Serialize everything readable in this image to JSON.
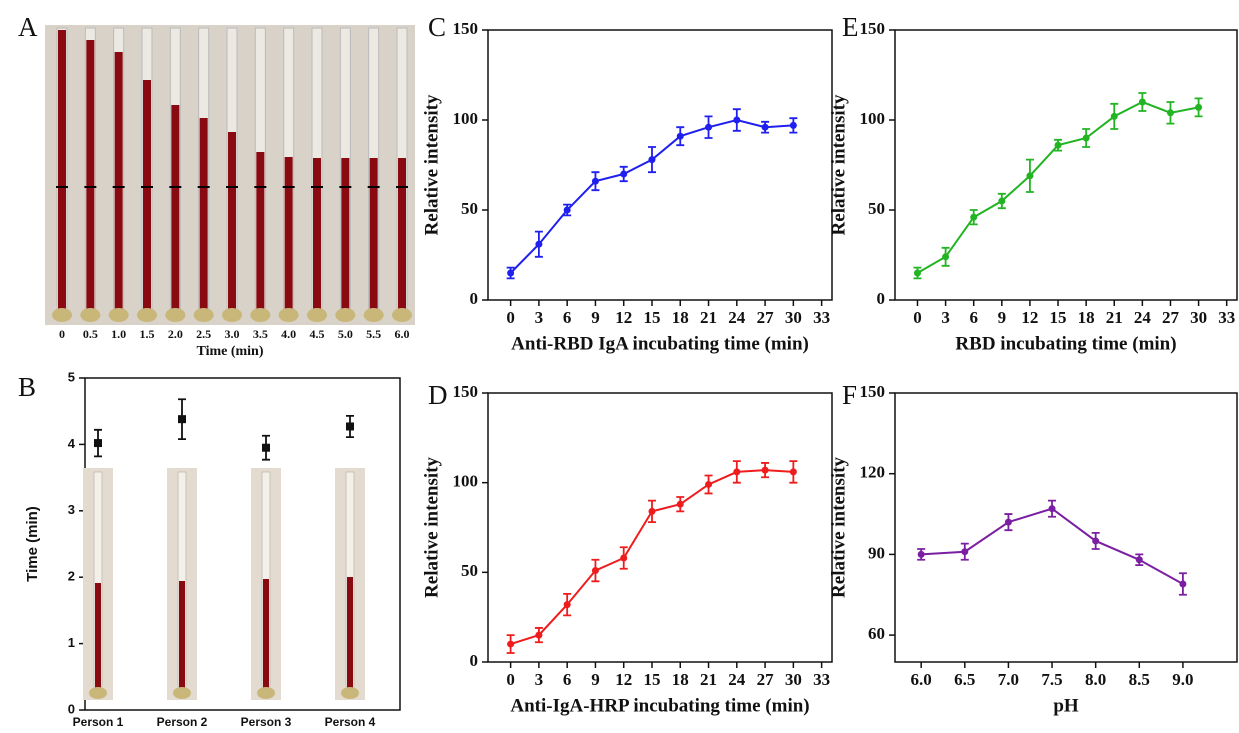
{
  "chart_data": [
    {
      "type": "image",
      "panel": "A",
      "categories": [
        "0",
        "0.5",
        "1.0",
        "1.5",
        "2.0",
        "2.5",
        "3.0",
        "3.5",
        "4.0",
        "4.5",
        "5.0",
        "5.5",
        "6.0"
      ],
      "xlabel": "Time (min)"
    },
    {
      "type": "scatter",
      "panel": "B",
      "categories": [
        "Person 1",
        "Person 2",
        "Person 3",
        "Person 4"
      ],
      "values": [
        4.02,
        4.38,
        3.95,
        4.27
      ],
      "errors": [
        0.2,
        0.3,
        0.18,
        0.16
      ],
      "color": "#111111",
      "ylabel": "Time (min)",
      "ylim": [
        0,
        5
      ],
      "yticks": [
        0,
        1,
        2,
        3,
        4,
        5
      ]
    },
    {
      "type": "line",
      "panel": "C",
      "x": [
        0,
        3,
        6,
        9,
        12,
        15,
        18,
        21,
        24,
        27,
        30
      ],
      "series": [
        {
          "color": "#1f1fef",
          "values": [
            15,
            31,
            50,
            66,
            70,
            78,
            91,
            96,
            100,
            96,
            97
          ],
          "errors": [
            3,
            7,
            3,
            5,
            4,
            7,
            5,
            6,
            6,
            3,
            4
          ]
        }
      ],
      "xlabel": "Anti-RBD IgA incubating time (min)",
      "ylabel": "Relative intensity",
      "xlim": [
        -2.4,
        34.1
      ],
      "xticks": [
        0,
        3,
        6,
        9,
        12,
        15,
        18,
        21,
        24,
        27,
        30,
        33
      ],
      "ylim": [
        0,
        150
      ],
      "yticks": [
        0,
        50,
        100,
        150
      ]
    },
    {
      "type": "line",
      "panel": "D",
      "x": [
        0,
        3,
        6,
        9,
        12,
        15,
        18,
        21,
        24,
        27,
        30
      ],
      "series": [
        {
          "color": "#ee1c1c",
          "values": [
            10,
            15,
            32,
            51,
            58,
            84,
            88,
            99,
            106,
            107,
            106
          ],
          "errors": [
            5,
            4,
            6,
            6,
            6,
            6,
            4,
            5,
            6,
            4,
            6
          ]
        }
      ],
      "xlabel": "Anti-IgA-HRP incubating time (min)",
      "ylabel": "Relative intensity",
      "xlim": [
        -2.4,
        34.1
      ],
      "xticks": [
        0,
        3,
        6,
        9,
        12,
        15,
        18,
        21,
        24,
        27,
        30,
        33
      ],
      "ylim": [
        0,
        150
      ],
      "yticks": [
        0,
        50,
        100,
        150
      ]
    },
    {
      "type": "line",
      "panel": "E",
      "x": [
        0,
        3,
        6,
        9,
        12,
        15,
        18,
        21,
        24,
        27,
        30
      ],
      "series": [
        {
          "color": "#22b422",
          "values": [
            15,
            24,
            46,
            55,
            69,
            86,
            90,
            102,
            110,
            104,
            107
          ],
          "errors": [
            3,
            5,
            4,
            4,
            9,
            3,
            5,
            7,
            5,
            6,
            5
          ]
        }
      ],
      "xlabel": "RBD incubating time (min)",
      "ylabel": "Relative intensity",
      "xlim": [
        -2.4,
        34.1
      ],
      "xticks": [
        0,
        3,
        6,
        9,
        12,
        15,
        18,
        21,
        24,
        27,
        30,
        33
      ],
      "ylim": [
        0,
        150
      ],
      "yticks": [
        0,
        50,
        100,
        150
      ]
    },
    {
      "type": "line",
      "panel": "F",
      "x": [
        6,
        6.5,
        7,
        7.5,
        8,
        8.5,
        9
      ],
      "series": [
        {
          "color": "#7b1fa2",
          "values": [
            90,
            91,
            102,
            107,
            95,
            88,
            79
          ],
          "errors": [
            2,
            3,
            3,
            3,
            3,
            2,
            4
          ]
        }
      ],
      "xlabel": "pH",
      "ylabel": "Relative intensity",
      "xlim": [
        5.7,
        9.62
      ],
      "xticks": [
        {
          "value": 6,
          "label": "6.0"
        },
        {
          "value": 6.5,
          "label": "6.5"
        },
        {
          "value": 7,
          "label": "7.0"
        },
        {
          "value": 7.5,
          "label": "7.5"
        },
        {
          "value": 8,
          "label": "8.0"
        },
        {
          "value": 8.5,
          "label": "8.5"
        },
        {
          "value": 9,
          "label": "9.0"
        }
      ],
      "ylim": [
        50,
        150
      ],
      "yticks": [
        60,
        90,
        120,
        150
      ]
    }
  ]
}
